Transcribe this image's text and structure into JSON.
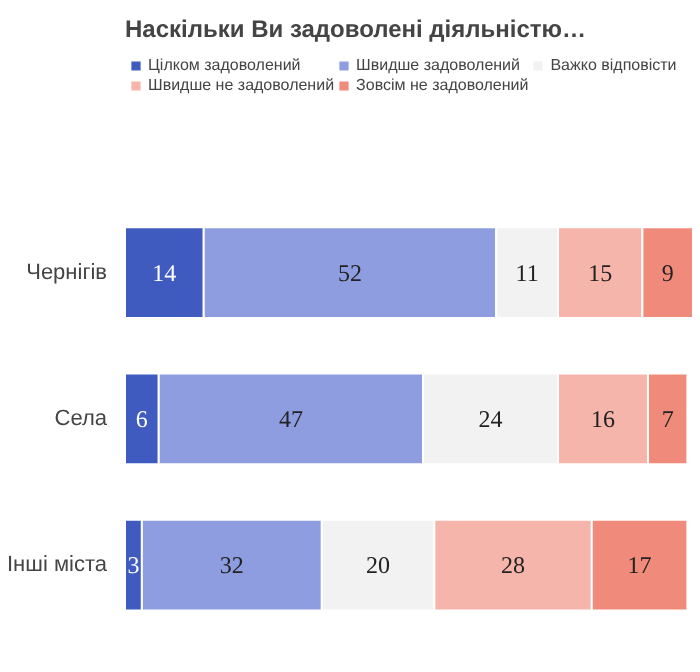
{
  "chart_data": {
    "type": "bar",
    "title": "Наскільки Ви задоволені діяльністю…",
    "orientation": "horizontal",
    "stacked": true,
    "data_labels": true,
    "legend": "top",
    "grid": false,
    "categories": [
      "Чернігів",
      "Села",
      "Інші міста"
    ],
    "series": [
      {
        "name": "Цілком задоволений",
        "color": "#3f5bbf",
        "values": [
          14,
          6,
          3
        ]
      },
      {
        "name": "Швидше задоволений",
        "color": "#8e9de0",
        "values": [
          52,
          47,
          32
        ]
      },
      {
        "name": "Важко відповісти",
        "color": "#f2f2f2",
        "values": [
          11,
          24,
          20
        ]
      },
      {
        "name": "Швидше не задоволений",
        "color": "#f5b5ab",
        "values": [
          15,
          16,
          28
        ]
      },
      {
        "name": "Зовсім не задоволений",
        "color": "#f08a7a",
        "values": [
          9,
          7,
          17
        ]
      }
    ]
  }
}
